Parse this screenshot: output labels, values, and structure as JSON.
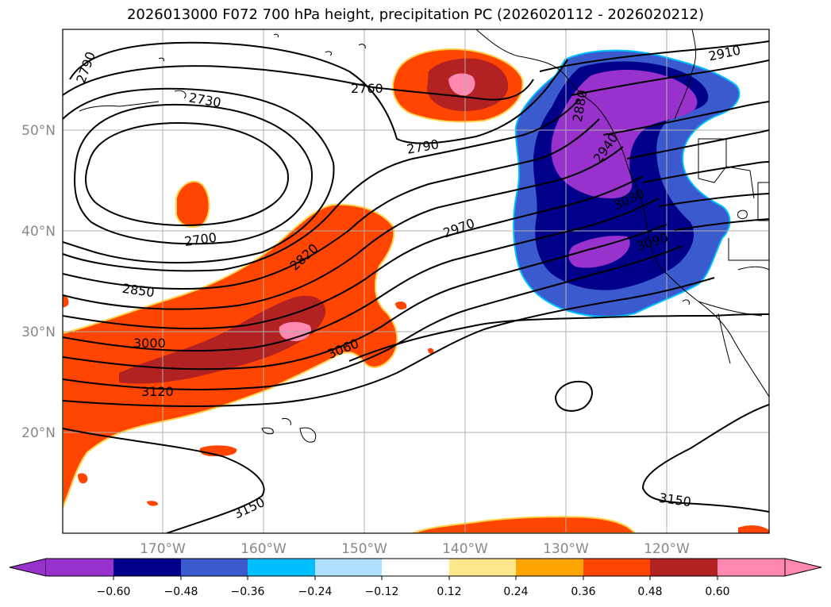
{
  "title": "2026013000 F072 700 hPa height, precipitation PC (2026020112 - 2026020212)",
  "latitude_labels": [
    "50°N",
    "40°N",
    "30°N",
    "20°N"
  ],
  "longitude_labels": [
    "170°W",
    "160°W",
    "150°W",
    "140°W",
    "130°W",
    "120°W"
  ],
  "contour_labels": [
    "2790",
    "2730",
    "2760",
    "2910",
    "2790",
    "2940",
    "3030",
    "2970",
    "2700",
    "2820",
    "3090",
    "2850",
    "3000",
    "3060",
    "3120",
    "3150",
    "3150",
    "2880"
  ],
  "colorbar": {
    "colors": [
      "#9932cc",
      "#00008b",
      "#3a5acd",
      "#00bfff",
      "#b0e0ff",
      "#ffffff",
      "#ffe88c",
      "#ffa500",
      "#ff4500",
      "#b22222",
      "#ff88b0"
    ],
    "tick_labels": [
      "−0.60",
      "−0.48",
      "−0.36",
      "−0.24",
      "−0.12",
      "0.12",
      "0.24",
      "0.36",
      "0.48",
      "0.60"
    ]
  },
  "colors": {
    "positive_fill": "#ff4500",
    "negative_fill": "#00008b",
    "contour": "#000000",
    "grid": "#b0b0b0"
  }
}
